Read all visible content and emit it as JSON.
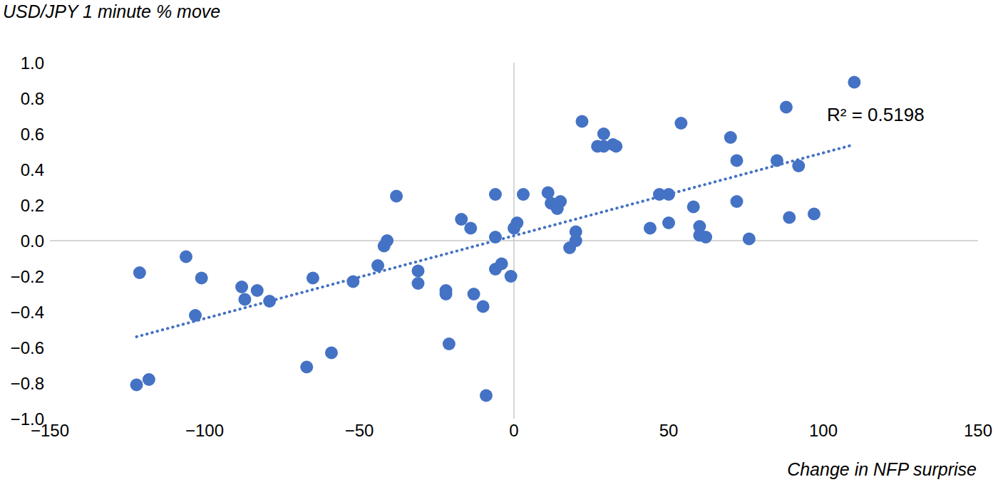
{
  "chart_data": {
    "type": "scatter",
    "x_label": "Change in NFP surprise",
    "y_label": "USD/JPY 1 minute % move",
    "annotation": "R² = 0.5198",
    "color": "#4472c4",
    "marker": "circle",
    "grid": false,
    "xlim": [
      -150,
      150
    ],
    "ylim": [
      -1.0,
      1.0
    ],
    "xticks": [
      {
        "value": -150,
        "label": "−150"
      },
      {
        "value": -100,
        "label": "−100"
      },
      {
        "value": -50,
        "label": "−50"
      },
      0,
      50,
      100,
      150
    ],
    "yticks": [
      {
        "value": -1.0,
        "label": "−1.0"
      },
      {
        "value": -0.8,
        "label": "−0.8"
      },
      {
        "value": -0.6,
        "label": "−0.6"
      },
      {
        "value": -0.4,
        "label": "−0.4"
      },
      {
        "value": -0.2,
        "label": "−0.2"
      },
      {
        "value": 0,
        "label": "0.0"
      },
      0.2,
      0.4,
      0.6,
      0.8,
      {
        "value": 1.0,
        "label": "1.0"
      }
    ],
    "x": [
      -121,
      -122,
      -118,
      -106,
      -101,
      -103,
      -88,
      -87,
      -83,
      -79,
      -65,
      -67,
      -59,
      -52,
      -44,
      -42,
      -41,
      -38,
      -31,
      -31,
      -22,
      -22,
      -21,
      -17,
      -14,
      -13,
      -10,
      -9,
      -6,
      -6,
      -6,
      -4,
      -1,
      0,
      1,
      3,
      11,
      12,
      14,
      15,
      18,
      20,
      20,
      22,
      27,
      29,
      29,
      32,
      33,
      44,
      47,
      50,
      50,
      54,
      58,
      60,
      60,
      62,
      70,
      72,
      72,
      76,
      85,
      88,
      89,
      92,
      97,
      110
    ],
    "values": [
      -0.18,
      -0.81,
      -0.78,
      -0.09,
      -0.21,
      -0.42,
      -0.26,
      -0.33,
      -0.28,
      -0.34,
      -0.21,
      -0.71,
      -0.63,
      -0.23,
      -0.14,
      -0.03,
      0.0,
      0.25,
      -0.17,
      -0.24,
      -0.28,
      -0.3,
      -0.58,
      0.12,
      0.07,
      -0.3,
      -0.37,
      -0.87,
      0.26,
      0.02,
      -0.16,
      -0.13,
      -0.2,
      0.07,
      0.1,
      0.26,
      0.27,
      0.21,
      0.18,
      0.22,
      -0.04,
      0.05,
      0.0,
      0.67,
      0.53,
      0.53,
      0.6,
      0.54,
      0.53,
      0.07,
      0.26,
      0.26,
      0.1,
      0.66,
      0.19,
      0.08,
      0.03,
      0.02,
      0.58,
      0.45,
      0.22,
      0.01,
      0.45,
      0.75,
      0.13,
      0.42,
      0.15,
      0.89
    ],
    "trendline": {
      "x": [
        -122,
        110
      ],
      "values": [
        -0.54,
        0.54
      ],
      "line_style": "dotted"
    }
  }
}
